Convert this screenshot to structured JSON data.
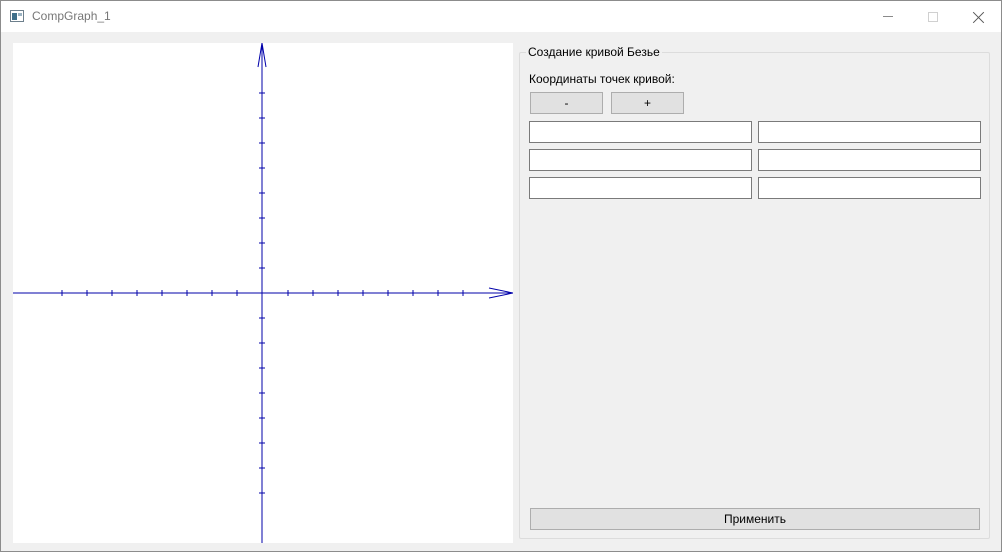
{
  "window": {
    "title": "CompGraph_1",
    "controls": [
      "minimize-icon",
      "maximize-icon",
      "close-icon"
    ]
  },
  "panel": {
    "group_title": "Создание кривой Безье",
    "coords_label": "Координаты точек кривой:",
    "minus_label": "-",
    "plus_label": "+",
    "apply_label": "Применить",
    "points": [
      {
        "x": "",
        "y": ""
      },
      {
        "x": "",
        "y": ""
      },
      {
        "x": "",
        "y": ""
      }
    ]
  },
  "plot": {
    "axis_color": "#0000aa",
    "ticks_per_half_axis": 8
  }
}
